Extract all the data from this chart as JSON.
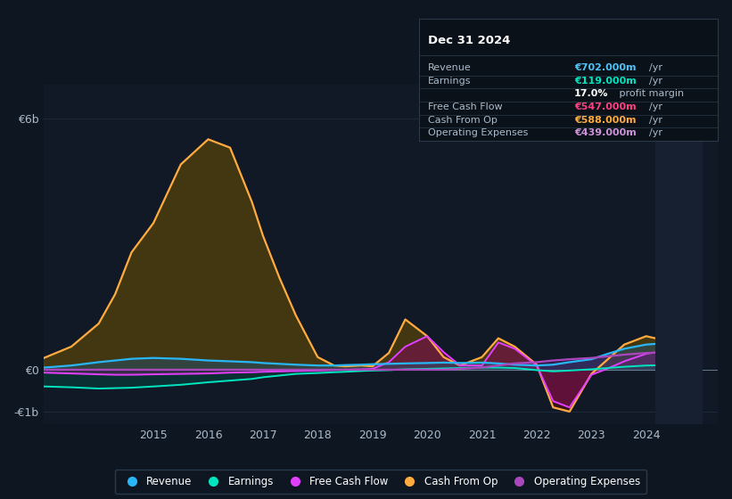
{
  "bg_color": "#0e1621",
  "plot_bg_color": "#111927",
  "grid_color": "#1e2d40",
  "box_bg_color": "#0a1118",
  "box_border_color": "#2a3a4a",
  "title_text": "Dec 31 2024",
  "info_rows": [
    {
      "label": "Revenue",
      "value": "€702.000m",
      "unit": "/yr",
      "value_color": "#4fc3f7",
      "bold_value": true
    },
    {
      "label": "Earnings",
      "value": "€119.000m",
      "unit": "/yr",
      "value_color": "#00e5c0",
      "bold_value": true
    },
    {
      "label": "",
      "value": "17.0%",
      "unit": " profit margin",
      "value_color": "#ffffff",
      "bold_value": true
    },
    {
      "label": "Free Cash Flow",
      "value": "€547.000m",
      "unit": "/yr",
      "value_color": "#ff4081",
      "bold_value": true
    },
    {
      "label": "Cash From Op",
      "value": "€588.000m",
      "unit": "/yr",
      "value_color": "#ffab40",
      "bold_value": true
    },
    {
      "label": "Operating Expenses",
      "value": "€439.000m",
      "unit": "/yr",
      "value_color": "#ce93d8",
      "bold_value": true
    }
  ],
  "x": [
    2013.0,
    2013.5,
    2014.0,
    2014.3,
    2014.6,
    2015.0,
    2015.5,
    2016.0,
    2016.4,
    2016.8,
    2017.0,
    2017.3,
    2017.6,
    2018.0,
    2018.3,
    2018.5,
    2018.8,
    2019.0,
    2019.3,
    2019.6,
    2020.0,
    2020.3,
    2020.6,
    2021.0,
    2021.3,
    2021.6,
    2022.0,
    2022.3,
    2022.6,
    2023.0,
    2023.3,
    2023.6,
    2024.0,
    2024.5,
    2025.0
  ],
  "cash_from_op": [
    0.28,
    0.55,
    1.1,
    1.8,
    2.8,
    3.5,
    4.9,
    5.5,
    5.3,
    4.0,
    3.2,
    2.2,
    1.3,
    0.3,
    0.1,
    0.08,
    0.1,
    0.08,
    0.4,
    1.2,
    0.8,
    0.3,
    0.1,
    0.3,
    0.75,
    0.55,
    0.12,
    -0.9,
    -1.0,
    -0.1,
    0.25,
    0.6,
    0.8,
    0.65,
    0.58
  ],
  "revenue": [
    0.05,
    0.1,
    0.18,
    0.22,
    0.26,
    0.28,
    0.26,
    0.22,
    0.2,
    0.18,
    0.16,
    0.14,
    0.12,
    0.1,
    0.1,
    0.11,
    0.12,
    0.13,
    0.14,
    0.15,
    0.16,
    0.17,
    0.16,
    0.17,
    0.15,
    0.12,
    0.1,
    0.12,
    0.18,
    0.25,
    0.38,
    0.5,
    0.6,
    0.65,
    0.7
  ],
  "earnings": [
    -0.4,
    -0.42,
    -0.45,
    -0.44,
    -0.43,
    -0.4,
    -0.36,
    -0.3,
    -0.26,
    -0.22,
    -0.18,
    -0.14,
    -0.1,
    -0.08,
    -0.06,
    -0.05,
    -0.03,
    -0.02,
    -0.01,
    0.01,
    0.02,
    0.03,
    0.04,
    0.05,
    0.05,
    0.04,
    -0.01,
    -0.04,
    -0.02,
    0.01,
    0.04,
    0.07,
    0.1,
    0.11,
    0.12
  ],
  "free_cash_flow": [
    -0.07,
    -0.09,
    -0.11,
    -0.12,
    -0.12,
    -0.11,
    -0.1,
    -0.09,
    -0.07,
    -0.06,
    -0.05,
    -0.04,
    -0.03,
    -0.02,
    -0.01,
    0.0,
    0.01,
    0.02,
    0.18,
    0.55,
    0.8,
    0.42,
    0.1,
    0.1,
    0.65,
    0.5,
    0.1,
    -0.75,
    -0.9,
    -0.12,
    0.03,
    0.2,
    0.38,
    0.48,
    0.55
  ],
  "operating_expenses": [
    0.0,
    0.0,
    0.0,
    0.0,
    0.0,
    0.0,
    0.0,
    0.0,
    0.0,
    0.0,
    0.0,
    0.0,
    0.0,
    0.0,
    0.0,
    0.0,
    0.0,
    0.0,
    0.0,
    0.0,
    0.0,
    0.0,
    0.02,
    0.05,
    0.1,
    0.15,
    0.18,
    0.22,
    0.25,
    0.28,
    0.32,
    0.36,
    0.4,
    0.42,
    0.44
  ],
  "revenue_color": "#29b6f6",
  "earnings_color": "#00e5c0",
  "free_cash_flow_color": "#e040fb",
  "cash_from_op_color": "#ffab40",
  "operating_expenses_color": "#ab47bc",
  "revenue_fill": "#1a5a80",
  "earnings_fill": "#006655",
  "free_cash_flow_fill": "#7b1050",
  "cash_from_op_fill": "#6b5000",
  "operating_expenses_fill": "#5a2070",
  "xlim": [
    2013.0,
    2025.3
  ],
  "ylim": [
    -1.3,
    6.8
  ],
  "ytick_vals": [
    -1,
    0,
    6
  ],
  "ytick_labels": [
    "-€1b",
    "€0",
    "€6b"
  ],
  "xtick_vals": [
    2015,
    2016,
    2017,
    2018,
    2019,
    2020,
    2021,
    2022,
    2023,
    2024
  ],
  "legend_items": [
    {
      "label": "Revenue",
      "color": "#29b6f6"
    },
    {
      "label": "Earnings",
      "color": "#00e5c0"
    },
    {
      "label": "Free Cash Flow",
      "color": "#e040fb"
    },
    {
      "label": "Cash From Op",
      "color": "#ffab40"
    },
    {
      "label": "Operating Expenses",
      "color": "#ab47bc"
    }
  ]
}
